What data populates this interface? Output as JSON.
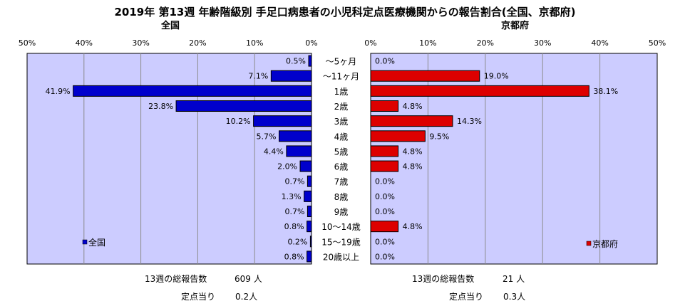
{
  "title": "2019年 第13週 年齢階級別 手足口病患者の小児科定点医療機関からの報告割合(全国、京都府)",
  "colors": {
    "plot_bg": "#ccccff",
    "national_bar": "#0000cc",
    "kyoto_bar": "#dd0000",
    "grid": "#8c8c8c"
  },
  "chart_data": [
    {
      "type": "bar",
      "title": "全国",
      "orientation": "horizontal",
      "direction": "right-to-left",
      "categories": [
        "〜5ヶ月",
        "〜11ヶ月",
        "1歳",
        "2歳",
        "3歳",
        "4歳",
        "5歳",
        "6歳",
        "7歳",
        "8歳",
        "9歳",
        "10〜14歳",
        "15〜19歳",
        "20歳以上"
      ],
      "series": [
        {
          "name": "全国",
          "values": [
            0.5,
            7.1,
            41.9,
            23.8,
            10.2,
            5.7,
            4.4,
            2.0,
            0.7,
            1.3,
            0.7,
            0.8,
            0.2,
            0.8
          ],
          "labels": [
            "0.5%",
            "7.1%",
            "41.9%",
            "23.8%",
            "10.2%",
            "5.7%",
            "4.4%",
            "2.0%",
            "0.7%",
            "1.3%",
            "0.7%",
            "0.8%",
            "0.2%",
            "0.8%"
          ]
        }
      ],
      "xlim": [
        0,
        50
      ],
      "ticks": [
        "50%",
        "40%",
        "30%",
        "20%",
        "10%",
        "0%"
      ],
      "grid": true,
      "legend_position": "bottom-left"
    },
    {
      "type": "bar",
      "title": "京都府",
      "orientation": "horizontal",
      "direction": "left-to-right",
      "categories": [
        "〜5ヶ月",
        "〜11ヶ月",
        "1歳",
        "2歳",
        "3歳",
        "4歳",
        "5歳",
        "6歳",
        "7歳",
        "8歳",
        "9歳",
        "10〜14歳",
        "15〜19歳",
        "20歳以上"
      ],
      "series": [
        {
          "name": "京都府",
          "values": [
            0.0,
            19.0,
            38.1,
            4.8,
            14.3,
            9.5,
            4.8,
            4.8,
            0.0,
            0.0,
            0.0,
            4.8,
            0.0,
            0.0
          ],
          "labels": [
            "0.0%",
            "19.0%",
            "38.1%",
            "4.8%",
            "14.3%",
            "9.5%",
            "4.8%",
            "4.8%",
            "0.0%",
            "0.0%",
            "0.0%",
            "4.8%",
            "0.0%",
            "0.0%"
          ]
        }
      ],
      "xlim": [
        0,
        50
      ],
      "ticks": [
        "0%",
        "10%",
        "20%",
        "30%",
        "40%",
        "50%"
      ],
      "grid": true,
      "legend_position": "bottom-right"
    }
  ],
  "footer": {
    "national": {
      "total_label": "13週の総報告数",
      "total_value": "609 人",
      "per_label": "定点当り",
      "per_value": "0.2人"
    },
    "kyoto": {
      "total_label": "13週の総報告数",
      "total_value": "21 人",
      "per_label": "定点当り",
      "per_value": "0.3人"
    }
  }
}
